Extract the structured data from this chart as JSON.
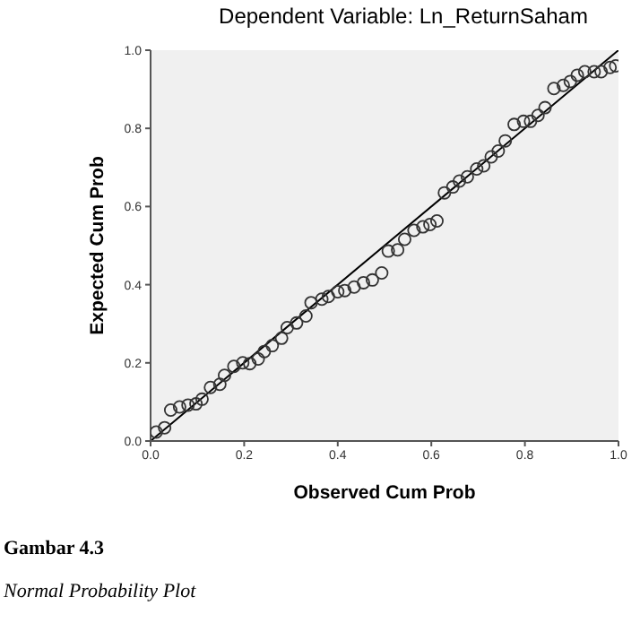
{
  "chart_data": {
    "type": "scatter",
    "title": "Dependent Variable: Ln_ReturnSaham",
    "xlabel": "Observed Cum Prob",
    "ylabel": "Expected Cum Prob",
    "xlim": [
      0,
      1
    ],
    "ylim": [
      0,
      1
    ],
    "xticks": [
      {
        "value": 0,
        "label": "0.0"
      },
      {
        "value": 0.2,
        "label": "0.2"
      },
      {
        "value": 0.4,
        "label": "0.4"
      },
      {
        "value": 0.6,
        "label": "0.6"
      },
      {
        "value": 0.8,
        "label": "0.8"
      },
      {
        "value": 1,
        "label": "1.0"
      }
    ],
    "yticks": [
      {
        "value": 0,
        "label": "0.0"
      },
      {
        "value": 0.2,
        "label": "0.2"
      },
      {
        "value": 0.4,
        "label": "0.4"
      },
      {
        "value": 0.6,
        "label": "0.6"
      },
      {
        "value": 0.8,
        "label": "0.8"
      },
      {
        "value": 1,
        "label": "1.0"
      }
    ],
    "grid": false,
    "legend": false,
    "series": [
      {
        "marker": "circle",
        "color": "#333333",
        "x": [
          0.012,
          0.03,
          0.043,
          0.062,
          0.08,
          0.097,
          0.11,
          0.128,
          0.148,
          0.158,
          0.178,
          0.197,
          0.212,
          0.23,
          0.243,
          0.26,
          0.28,
          0.292,
          0.312,
          0.332,
          0.343,
          0.366,
          0.38,
          0.4,
          0.415,
          0.435,
          0.455,
          0.474,
          0.494,
          0.508,
          0.528,
          0.543,
          0.563,
          0.582,
          0.597,
          0.612,
          0.628,
          0.646,
          0.66,
          0.677,
          0.697,
          0.712,
          0.728,
          0.743,
          0.758,
          0.777,
          0.797,
          0.812,
          0.828,
          0.843,
          0.862,
          0.882,
          0.897,
          0.912,
          0.928,
          0.948,
          0.963,
          0.982,
          0.994
        ],
        "values": [
          0.023,
          0.034,
          0.079,
          0.087,
          0.092,
          0.095,
          0.107,
          0.137,
          0.145,
          0.168,
          0.191,
          0.2,
          0.198,
          0.21,
          0.229,
          0.244,
          0.263,
          0.29,
          0.302,
          0.32,
          0.354,
          0.363,
          0.37,
          0.382,
          0.385,
          0.394,
          0.405,
          0.412,
          0.43,
          0.486,
          0.489,
          0.516,
          0.539,
          0.548,
          0.554,
          0.563,
          0.635,
          0.65,
          0.665,
          0.676,
          0.696,
          0.704,
          0.727,
          0.742,
          0.768,
          0.81,
          0.818,
          0.818,
          0.833,
          0.853,
          0.902,
          0.91,
          0.92,
          0.936,
          0.945,
          0.945,
          0.945,
          0.956,
          0.96
        ]
      },
      {
        "type": "line",
        "marker": "none",
        "color": "#000000",
        "x": [
          0,
          1
        ],
        "values": [
          0,
          1
        ]
      }
    ],
    "annotations": [
      "Gambar 4.3",
      "Normal Probability Plot"
    ]
  }
}
